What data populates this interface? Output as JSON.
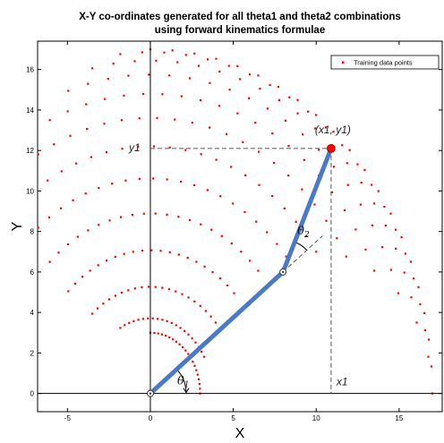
{
  "chart_data": {
    "type": "scatter",
    "title_line1": "X-Y co-ordinates generated for all theta1 and theta2 combinations",
    "title_line2": "using forward kinematics formulae",
    "xlabel": "X",
    "ylabel": "Y",
    "xlim": [
      -6.8,
      17.6
    ],
    "ylim": [
      -0.9,
      17.4
    ],
    "xticks": [
      -5,
      0,
      5,
      10,
      15
    ],
    "yticks": [
      0,
      2,
      4,
      6,
      8,
      10,
      12,
      14,
      16
    ],
    "grid": false,
    "legend": {
      "entry": "Training data points",
      "position": "top-right",
      "marker_color": "#ff0000"
    },
    "series": [
      {
        "name": "Training data points",
        "color": "#ff0000",
        "generator": {
          "l1": 10,
          "l2": 7,
          "theta1_deg": [
            0,
            90
          ],
          "theta1_steps": 21,
          "theta2_deg": [
            0,
            180
          ],
          "theta2_steps": 13
        }
      }
    ],
    "arm": {
      "base": [
        0,
        0
      ],
      "joint": [
        8,
        6
      ],
      "end_effector": [
        10.9,
        12.1
      ],
      "color": "#4a7ac7"
    },
    "annotations": {
      "end_label": "(x1, y1)",
      "y1_label": "y1",
      "x1_label": "x1",
      "theta1": "θ",
      "theta1_sub": "1",
      "theta2": "θ",
      "theta2_sub": "2"
    }
  }
}
